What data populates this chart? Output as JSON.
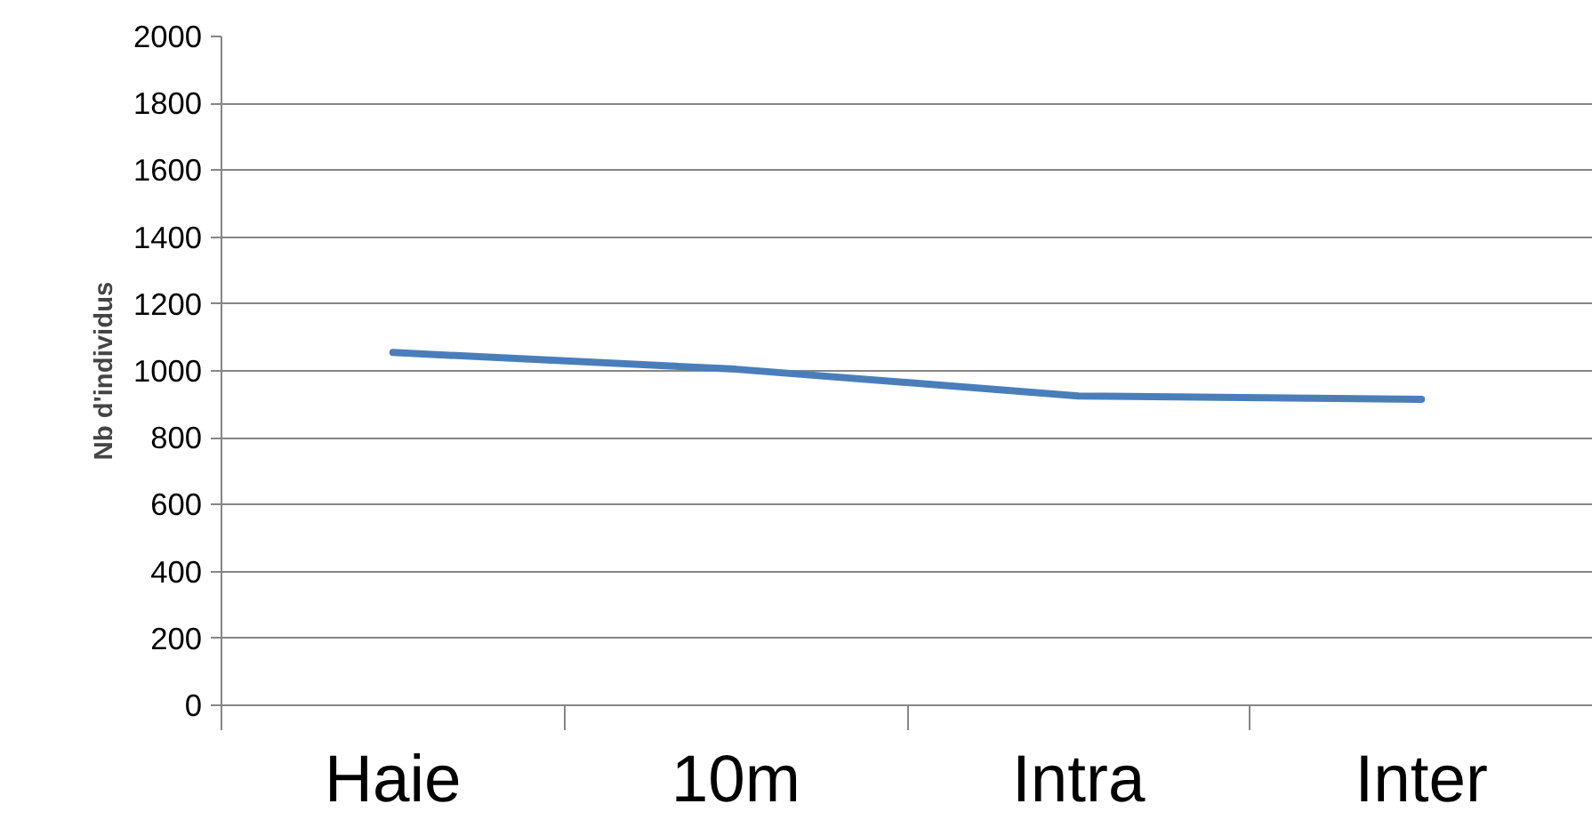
{
  "chart_data": {
    "type": "line",
    "ylabel": "Nb d'individus",
    "categories": [
      "Haie",
      "10m",
      "Intra",
      "Inter"
    ],
    "series": [
      {
        "color": "#4a7ebb",
        "values": [
          1055,
          1005,
          925,
          915
        ]
      }
    ],
    "ylim": [
      0,
      2000
    ],
    "yticks": [
      0,
      200,
      400,
      600,
      800,
      1000,
      1200,
      1400,
      1600,
      1800,
      2000
    ],
    "grid": "y",
    "marker": "none",
    "line_style": "solid"
  }
}
